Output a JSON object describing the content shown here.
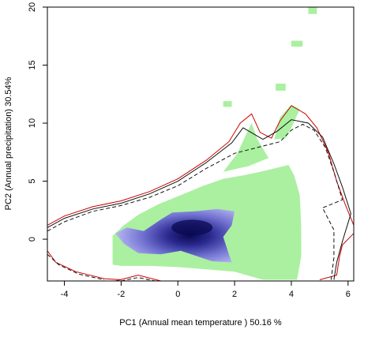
{
  "chart_data": {
    "type": "heatmap",
    "title": "",
    "xlabel": "PC1 (Annual mean temperature ) 50.16 %",
    "ylabel": "PC2 (Annual precipitation) 30.54%",
    "xlim": [
      -4.6,
      6.2
    ],
    "ylim": [
      -3.6,
      20
    ],
    "xticks": [
      -4,
      -2,
      0,
      2,
      4,
      6
    ],
    "yticks": [
      0,
      5,
      10,
      15,
      20
    ],
    "grid": false,
    "layers": [
      {
        "name": "",
        "kind": "filled-region",
        "color": "#aaf0a0",
        "polygons": [
          [
            [
              -2.3,
              -2.2
            ],
            [
              -2.3,
              0.3
            ],
            [
              -1.9,
              1.2
            ],
            [
              -1.4,
              2.1
            ],
            [
              -0.7,
              3.0
            ],
            [
              0.1,
              3.8
            ],
            [
              0.9,
              4.6
            ],
            [
              1.6,
              5.2
            ],
            [
              2.3,
              5.5
            ],
            [
              2.9,
              5.8
            ],
            [
              3.4,
              6.1
            ],
            [
              3.9,
              6.4
            ],
            [
              4.1,
              5.5
            ],
            [
              4.3,
              3.8
            ],
            [
              4.35,
              1.0
            ],
            [
              4.35,
              -1.5
            ],
            [
              4.2,
              -3.5
            ],
            [
              3.0,
              -3.5
            ],
            [
              2.0,
              -2.8
            ],
            [
              1.0,
              -2.6
            ],
            [
              0.0,
              -2.4
            ],
            [
              -1.0,
              -2.3
            ],
            [
              -2.0,
              -2.3
            ]
          ],
          [
            [
              1.6,
              5.8
            ],
            [
              2.1,
              7.4
            ],
            [
              2.4,
              9.0
            ],
            [
              2.6,
              10.0
            ],
            [
              2.8,
              8.6
            ],
            [
              3.2,
              7.0
            ],
            [
              2.5,
              6.3
            ]
          ],
          [
            [
              3.4,
              8.6
            ],
            [
              3.6,
              10.5
            ],
            [
              4.0,
              11.6
            ],
            [
              4.3,
              11.2
            ],
            [
              4.0,
              9.6
            ],
            [
              3.8,
              8.7
            ]
          ],
          [
            [
              1.6,
              11.4
            ],
            [
              1.9,
              11.4
            ],
            [
              1.9,
              11.9
            ],
            [
              1.6,
              11.9
            ]
          ],
          [
            [
              3.45,
              12.8
            ],
            [
              3.8,
              12.8
            ],
            [
              3.8,
              13.4
            ],
            [
              3.45,
              13.4
            ]
          ],
          [
            [
              4.0,
              16.6
            ],
            [
              4.4,
              16.6
            ],
            [
              4.4,
              17.1
            ],
            [
              4.0,
              17.1
            ]
          ],
          [
            [
              4.6,
              19.4
            ],
            [
              4.9,
              19.4
            ],
            [
              4.9,
              20.0
            ],
            [
              4.6,
              20.0
            ]
          ]
        ]
      }
    ],
    "density_peak": {
      "x": 0.5,
      "y": 1.0,
      "color_low": "#c8c8f8",
      "color_high": "#0a0a50"
    },
    "contours": [
      {
        "name": "",
        "color": "#cc0000",
        "dash": "solid",
        "points": [
          [
            -4.6,
            1.2
          ],
          [
            -4.0,
            2.0
          ],
          [
            -3.0,
            2.8
          ],
          [
            -2.0,
            3.3
          ],
          [
            -1.0,
            4.1
          ],
          [
            0.0,
            5.2
          ],
          [
            1.0,
            6.8
          ],
          [
            1.8,
            8.4
          ],
          [
            2.2,
            10.0
          ],
          [
            2.6,
            10.8
          ],
          [
            2.9,
            9.2
          ],
          [
            3.3,
            8.7
          ],
          [
            3.6,
            10.2
          ],
          [
            4.0,
            11.5
          ],
          [
            4.5,
            10.8
          ],
          [
            4.9,
            9.6
          ],
          [
            5.3,
            7.5
          ],
          [
            5.6,
            5.0
          ],
          [
            5.9,
            3.0
          ],
          [
            6.2,
            1.2
          ],
          [
            6.2,
            0.5
          ],
          [
            5.8,
            -0.5
          ],
          [
            5.7,
            -1.5
          ],
          [
            5.6,
            -3.1
          ],
          [
            5.0,
            -3.5
          ]
        ]
      },
      {
        "name": "",
        "color": "#111111",
        "dash": "solid",
        "points": [
          [
            -4.6,
            1.0
          ],
          [
            -4.0,
            1.8
          ],
          [
            -3.0,
            2.6
          ],
          [
            -2.0,
            3.1
          ],
          [
            -1.0,
            3.9
          ],
          [
            0.0,
            5.0
          ],
          [
            1.0,
            6.6
          ],
          [
            1.9,
            8.3
          ],
          [
            2.3,
            9.6
          ],
          [
            3.0,
            8.6
          ],
          [
            3.5,
            9.3
          ],
          [
            4.0,
            10.3
          ],
          [
            4.6,
            10.0
          ],
          [
            5.1,
            8.8
          ],
          [
            5.5,
            6.5
          ],
          [
            5.8,
            4.5
          ],
          [
            6.1,
            2.2
          ],
          [
            5.8,
            -0.2
          ],
          [
            5.6,
            -2.0
          ],
          [
            5.5,
            -3.5
          ]
        ]
      },
      {
        "name": "",
        "color": "#111111",
        "dash": "dashed",
        "points": [
          [
            -4.6,
            0.7
          ],
          [
            -4.0,
            1.5
          ],
          [
            -3.0,
            2.4
          ],
          [
            -2.0,
            2.9
          ],
          [
            -1.0,
            3.6
          ],
          [
            0.0,
            4.6
          ],
          [
            1.0,
            6.1
          ],
          [
            2.0,
            7.4
          ],
          [
            2.8,
            7.9
          ],
          [
            3.6,
            8.4
          ],
          [
            4.0,
            9.4
          ],
          [
            4.4,
            9.9
          ],
          [
            4.8,
            9.4
          ],
          [
            5.2,
            7.9
          ],
          [
            5.5,
            5.8
          ],
          [
            5.8,
            3.4
          ],
          [
            5.1,
            2.7
          ],
          [
            5.5,
            0.8
          ],
          [
            5.5,
            -1.6
          ],
          [
            5.4,
            -3.5
          ]
        ]
      },
      {
        "name": "",
        "color": "#cc0000",
        "dash": "solid",
        "points": [
          [
            -4.6,
            -1.0
          ],
          [
            -4.3,
            -2.0
          ],
          [
            -3.6,
            -2.8
          ],
          [
            -2.6,
            -3.4
          ],
          [
            -2.0,
            -3.5
          ]
        ]
      },
      {
        "name": "",
        "color": "#111111",
        "dash": "dashed",
        "points": [
          [
            -4.6,
            -1.3
          ],
          [
            -4.2,
            -2.2
          ],
          [
            -3.5,
            -3.0
          ],
          [
            -2.6,
            -3.5
          ]
        ]
      },
      {
        "name": "",
        "color": "#cc0000",
        "dash": "solid",
        "points": [
          [
            -2.2,
            -3.6
          ],
          [
            -1.4,
            -3.1
          ],
          [
            -0.6,
            -3.6
          ]
        ]
      },
      {
        "name": "",
        "color": "#111111",
        "dash": "dashed",
        "points": [
          [
            -2.0,
            -3.6
          ],
          [
            -1.4,
            -3.3
          ],
          [
            -0.8,
            -3.6
          ]
        ]
      }
    ]
  }
}
